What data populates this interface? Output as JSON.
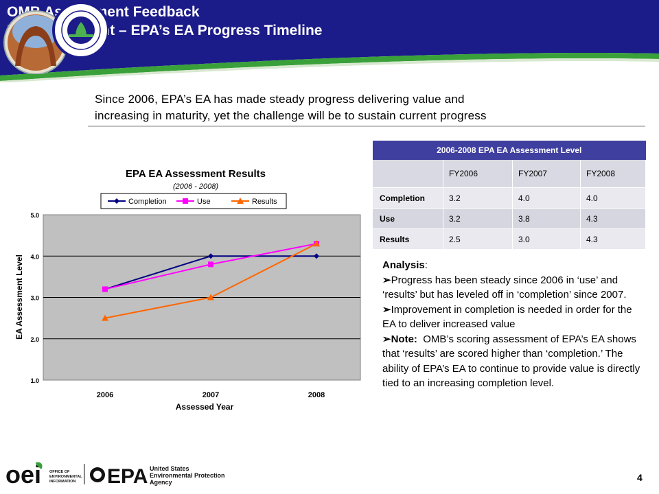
{
  "header": {
    "title_line1": "OMB Assessment Feedback",
    "title_line2": "EA Assessment – EPA’s EA Progress Timeline"
  },
  "subtitle": {
    "line1": "Since 2006, EPA’s EA has made steady progress delivering value and",
    "line2": "increasing in maturity, yet the challenge will be to sustain current progress"
  },
  "chart_data": {
    "type": "line",
    "title": "EPA EA Assessment Results",
    "subtitle": "(2006 - 2008)",
    "xlabel": "Assessed Year",
    "ylabel": "EA Assessment Level",
    "categories": [
      "2006",
      "2007",
      "2008"
    ],
    "ylim": [
      1.0,
      5.0
    ],
    "yticks": [
      "1.0",
      "2.0",
      "3.0",
      "4.0",
      "5.0"
    ],
    "grid": true,
    "legend_position": "top",
    "series": [
      {
        "name": "Completion",
        "values": [
          3.2,
          4.0,
          4.0
        ],
        "color": "#000080",
        "marker": "diamond"
      },
      {
        "name": "Use",
        "values": [
          3.2,
          3.8,
          4.3
        ],
        "color": "#ff00ff",
        "marker": "square"
      },
      {
        "name": "Results",
        "values": [
          2.5,
          3.0,
          4.3
        ],
        "color": "#ff6600",
        "marker": "triangle"
      }
    ]
  },
  "table": {
    "title": "2006-2008 EPA EA Assessment Level",
    "years": [
      "FY2006",
      "FY2007",
      "FY2008"
    ],
    "rows": [
      {
        "label": "Completion",
        "values": [
          "3.2",
          "4.0",
          "4.0"
        ]
      },
      {
        "label": "Use",
        "values": [
          "3.2",
          "3.8",
          "4.3"
        ]
      },
      {
        "label": "Results",
        "values": [
          "2.5",
          "3.0",
          "4.3"
        ]
      }
    ]
  },
  "analysis": {
    "heading": "Analysis",
    "heading_suffix": ":",
    "bullet_glyph": "➢",
    "b1": "Progress has been steady since 2006 in ‘use’ and ‘results’ but has leveled off in ‘completion’ since 2007.",
    "b2": "Improvement in completion is needed in order for the EA to deliver increased value",
    "b3_bold": "Note:",
    "b3": "  OMB’s scoring assessment of EPA’s EA shows that ‘results’ are scored higher than ‘completion.’ The ability of EPA’s EA to continue to provide value is directly tied to an increasing completion level."
  },
  "footer": {
    "oei_logo_text": "oei",
    "oei_caption_1": "OFFICE OF",
    "oei_caption_2": "ENVIRONMENTAL",
    "oei_caption_3": "INFORMATION",
    "epa_logo_text": "EPA",
    "epa_caption_1": "United States",
    "epa_caption_2": "Environmental Protection",
    "epa_caption_3": "Agency",
    "page_number": "4"
  },
  "colors": {
    "header_blue": "#1b1b8a",
    "header_green": "#3aa03a",
    "table_header": "#3f3f9f",
    "plot_bg": "#c0c0c0"
  }
}
